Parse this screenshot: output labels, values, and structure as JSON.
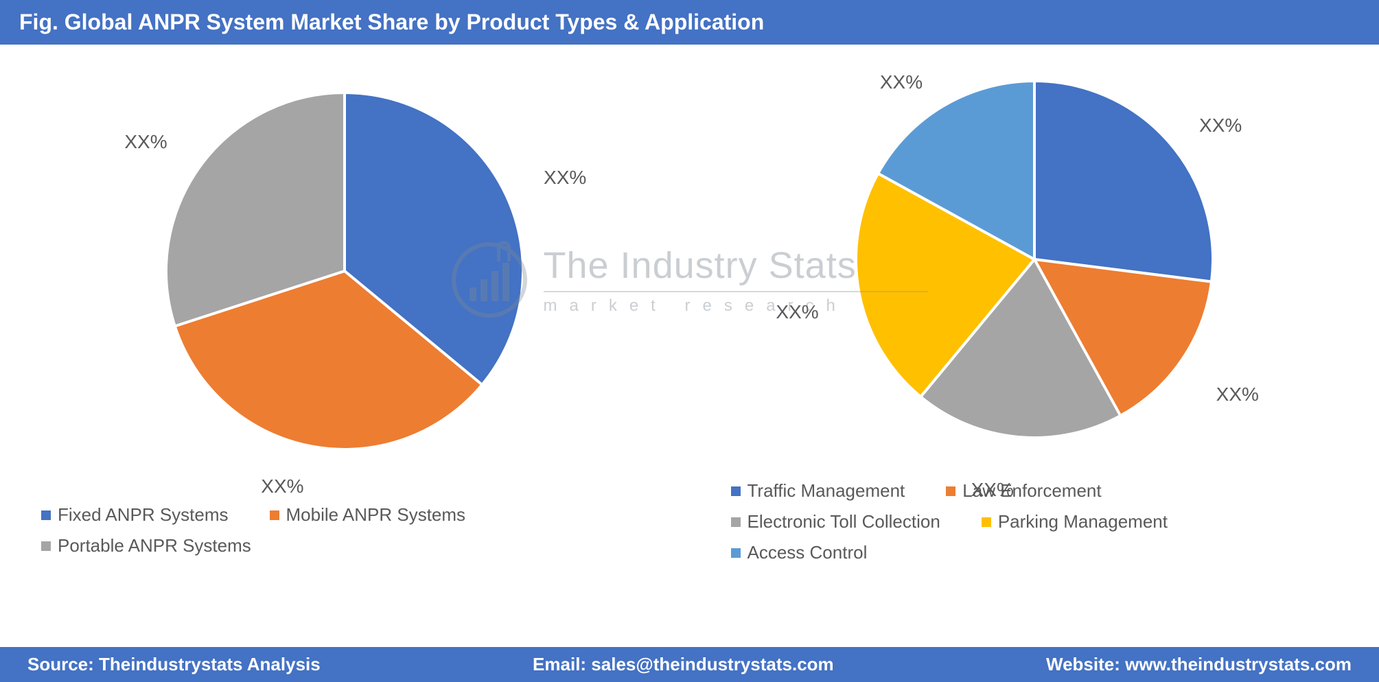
{
  "header": {
    "title": "Fig. Global ANPR System Market Share by Product Types & Application"
  },
  "palette": [
    "#4472c4",
    "#ed7d31",
    "#a5a5a5",
    "#ffc000",
    "#5b9bd5"
  ],
  "chart_left": {
    "type": "pie",
    "radius": 260,
    "stroke": "#ffffff",
    "stroke_width": 4,
    "slices": [
      {
        "label": "Fixed ANPR Systems",
        "value": 36,
        "color": "#4472c4",
        "data_label": "XX%"
      },
      {
        "label": "Mobile ANPR Systems",
        "value": 34,
        "color": "#ed7d31",
        "data_label": "XX%"
      },
      {
        "label": "Portable ANPR Systems",
        "value": 30,
        "color": "#a5a5a5",
        "data_label": "XX%"
      }
    ]
  },
  "chart_right": {
    "type": "pie",
    "radius": 260,
    "stroke": "#ffffff",
    "stroke_width": 4,
    "slices": [
      {
        "label": "Traffic Management",
        "value": 27,
        "color": "#4472c4",
        "data_label": "XX%"
      },
      {
        "label": "Law Enforcement",
        "value": 15,
        "color": "#ed7d31",
        "data_label": "XX%"
      },
      {
        "label": "Electronic Toll Collection",
        "value": 19,
        "color": "#a5a5a5",
        "data_label": "XX%"
      },
      {
        "label": "Parking Management",
        "value": 22,
        "color": "#ffc000",
        "data_label": "XX%"
      },
      {
        "label": "Access Control",
        "value": 17,
        "color": "#5b9bd5",
        "data_label": "XX%"
      }
    ]
  },
  "watermark": {
    "title": "The Industry Stats",
    "subtitle": "market   research"
  },
  "footer": {
    "source": "Source: Theindustrystats Analysis",
    "email": "Email: sales@theindustrystats.com",
    "website": "Website: www.theindustrystats.com"
  }
}
